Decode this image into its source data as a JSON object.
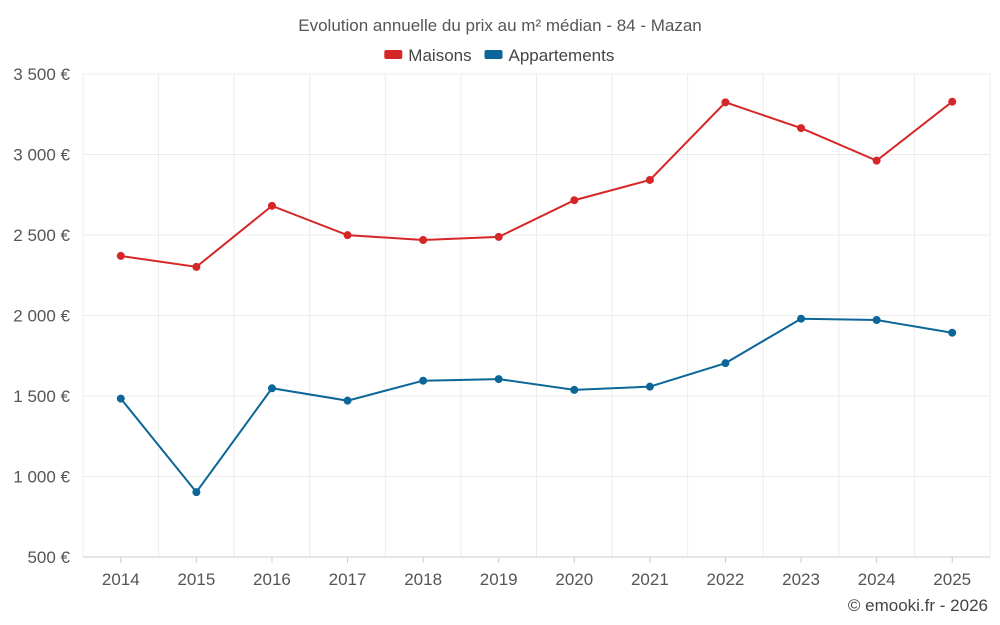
{
  "chart_data": {
    "type": "line",
    "title": "Evolution annuelle du prix au m² médian - 84 - Mazan",
    "categories": [
      "2014",
      "2015",
      "2016",
      "2017",
      "2018",
      "2019",
      "2020",
      "2021",
      "2022",
      "2023",
      "2024",
      "2025"
    ],
    "series": [
      {
        "name": "Maisons",
        "color": "#d62728",
        "values": [
          2370,
          2302,
          2681,
          2499,
          2469,
          2488,
          2716,
          2842,
          3324,
          3164,
          2962,
          3328
        ]
      },
      {
        "name": "Appartements",
        "color": "#0d6698",
        "values": [
          1484,
          903,
          1548,
          1471,
          1595,
          1605,
          1538,
          1558,
          1704,
          1980,
          1972,
          1893
        ]
      }
    ],
    "ylim": [
      500,
      3500
    ],
    "yticks": [
      500,
      1000,
      1500,
      2000,
      2500,
      3000,
      3500
    ],
    "ytick_labels": [
      "500 €",
      "1 000 €",
      "1 500 €",
      "2 000 €",
      "2 500 €",
      "3 000 €",
      "3 500 €"
    ],
    "xlabel": "",
    "ylabel": "",
    "grid": true,
    "legend_position": "top-center"
  },
  "credit": "© emooki.fr - 2026"
}
